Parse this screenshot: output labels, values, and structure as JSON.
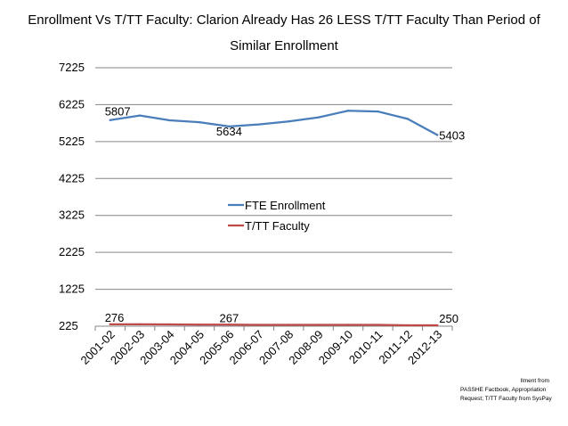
{
  "chart_data": {
    "type": "line",
    "title_line1": "Enrollment Vs T/TT Faculty: Clarion Already Has 26 LESS T/TT Faculty Than Period of",
    "title_line2": "Similar Enrollment",
    "categories": [
      "2001-02",
      "2002-03",
      "2003-04",
      "2004-05",
      "2005-06",
      "2006-07",
      "2007-08",
      "2008-09",
      "2009-10",
      "2010-11",
      "2011-12",
      "2012-13"
    ],
    "series": [
      {
        "name": "FTE Enrollment",
        "color": "#4a7ebb",
        "values": [
          5807,
          5930,
          5800,
          5750,
          5634,
          5690,
          5770,
          5880,
          6060,
          6040,
          5840,
          5403
        ],
        "labels": [
          {
            "index": 0,
            "text": "5807"
          },
          {
            "index": 4,
            "text": "5634"
          },
          {
            "index": 11,
            "text": "5403"
          }
        ]
      },
      {
        "name": "T/TT Faculty",
        "color": "#be4b48",
        "values": [
          276,
          276,
          274,
          266,
          267,
          262,
          262,
          262,
          262,
          260,
          250,
          250
        ],
        "labels": [
          {
            "index": 0,
            "text": "276"
          },
          {
            "index": 4,
            "text": "267"
          },
          {
            "index": 11,
            "text": "250"
          }
        ]
      }
    ],
    "y_ticks": [
      "7225",
      "6225",
      "5225",
      "4225",
      "3225",
      "2225",
      "1225",
      "225"
    ],
    "ylim": [
      225,
      7225
    ],
    "grid": true,
    "legend_position": "center"
  },
  "source_note": {
    "line1": "llment from",
    "line2": "PASSHE Factbook, Appropriation",
    "line3": "Request; T/TT Faculty from SysPay"
  }
}
